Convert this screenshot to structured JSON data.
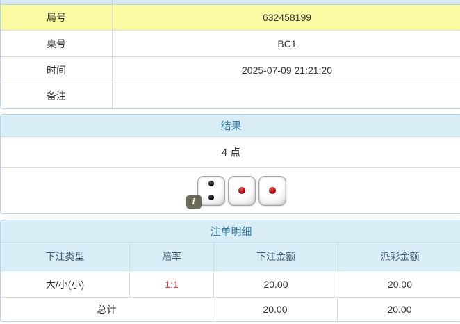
{
  "info_table": {
    "rows": [
      {
        "label": "局号",
        "value": "632458199"
      },
      {
        "label": "桌号",
        "value": "BC1"
      },
      {
        "label": "时间",
        "value": "2025-07-09 21:21:20"
      },
      {
        "label": "备注",
        "value": ""
      }
    ]
  },
  "result_panel": {
    "title": "结果",
    "points": "4 点",
    "dice": [
      {
        "value": 2,
        "color": "black"
      },
      {
        "value": 1,
        "color": "red"
      },
      {
        "value": 1,
        "color": "red"
      }
    ],
    "info_badge": "i"
  },
  "bets_panel": {
    "title": "注单明细",
    "columns": [
      "下注类型",
      "赔率",
      "下注金额",
      "派彩金额"
    ],
    "rows": [
      {
        "bet_type": "大/小(小)",
        "odds": "1:1",
        "bet_amount": "20.00",
        "payout": "20.00"
      }
    ],
    "total": {
      "label": "总计",
      "bet_amount": "20.00",
      "payout": "20.00"
    }
  },
  "colors": {
    "panel_header_bg": "#d9edf7",
    "panel_header_text": "#347ca3",
    "highlight_row_bg": "#fafaa5",
    "panel_border": "#b4d2e3",
    "row_divider": "#dddddd",
    "odds_red": "#e4393c",
    "pip_black": "#000000",
    "pip_red": "#a50d0d"
  }
}
